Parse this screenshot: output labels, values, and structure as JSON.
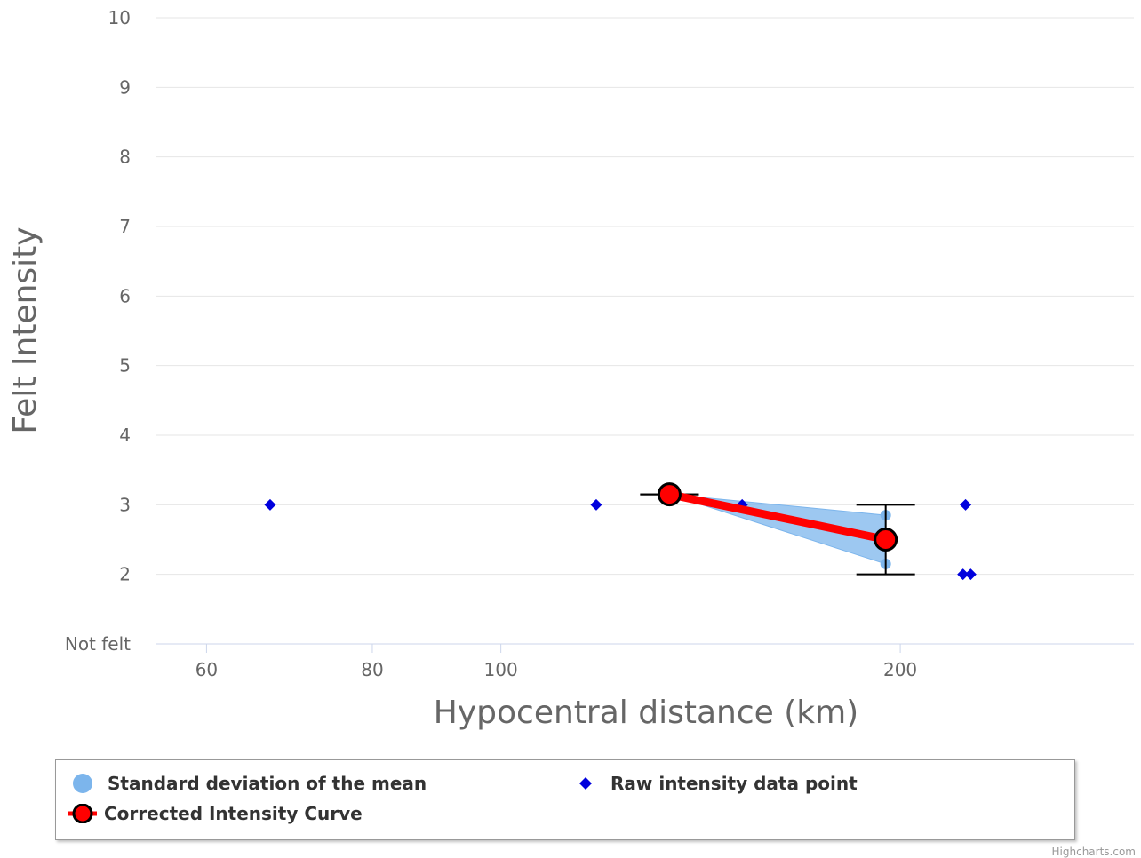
{
  "chart_data": {
    "type": "scatter",
    "xlabel": "Hypocentral distance (km)",
    "ylabel": "Felt Intensity",
    "x_scale": "log",
    "xlim": [
      55,
      300
    ],
    "ylim": [
      1,
      10
    ],
    "x_ticks": [
      60,
      80,
      100,
      200
    ],
    "y_ticks": [
      {
        "value": 1,
        "label": "Not felt"
      },
      {
        "value": 2,
        "label": "2"
      },
      {
        "value": 3,
        "label": "3"
      },
      {
        "value": 4,
        "label": "4"
      },
      {
        "value": 5,
        "label": "5"
      },
      {
        "value": 6,
        "label": "6"
      },
      {
        "value": 7,
        "label": "7"
      },
      {
        "value": 8,
        "label": "8"
      },
      {
        "value": 9,
        "label": "9"
      },
      {
        "value": 10,
        "label": "10"
      }
    ],
    "grid": true,
    "legend_position": "bottom",
    "series": [
      {
        "name": "Standard deviation of the mean",
        "kind": "arearange",
        "color": "#7cb5ec",
        "points": [
          {
            "x": 134,
            "low": 3.15,
            "high": 3.15
          },
          {
            "x": 195,
            "low": 2.15,
            "high": 2.85
          }
        ]
      },
      {
        "name": "Corrected Intensity Curve",
        "kind": "line",
        "color": "#ff0000",
        "points": [
          {
            "x": 134,
            "y": 3.15
          },
          {
            "x": 195,
            "y": 2.5
          }
        ],
        "error_bars": [
          {
            "x": 134,
            "low": 3.15,
            "high": 3.15
          },
          {
            "x": 195,
            "low": 2.0,
            "high": 3.0
          }
        ]
      },
      {
        "name": "Raw intensity data point",
        "kind": "scatter",
        "color": "#0000dd",
        "points": [
          {
            "x": 67,
            "y": 3
          },
          {
            "x": 118,
            "y": 3
          },
          {
            "x": 152,
            "y": 3
          },
          {
            "x": 224,
            "y": 3
          },
          {
            "x": 223,
            "y": 2
          },
          {
            "x": 226,
            "y": 2
          }
        ]
      }
    ]
  },
  "legend": {
    "std_label": "Standard deviation of the mean",
    "raw_label": "Raw intensity data point",
    "curve_label": "Corrected Intensity Curve"
  },
  "credits": "Highcharts.com"
}
